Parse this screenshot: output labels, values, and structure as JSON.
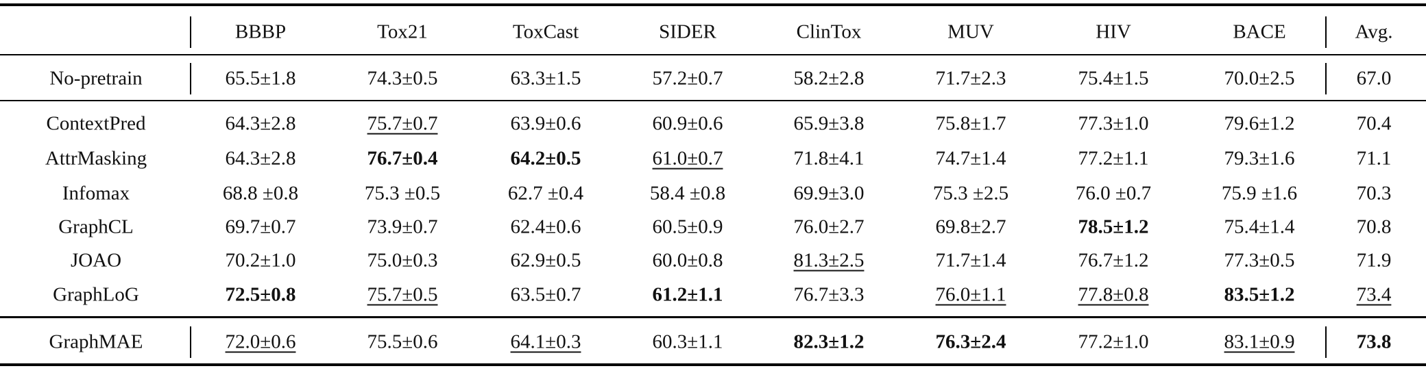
{
  "table": {
    "header": {
      "columns": [
        "BBBP",
        "Tox21",
        "ToxCast",
        "SIDER",
        "ClinTox",
        "MUV",
        "HIV",
        "BACE"
      ],
      "avg": "Avg."
    },
    "sections": [
      {
        "rows": [
          {
            "method": "No-pretrain",
            "cells": [
              "65.5±1.8",
              "74.3±0.5",
              "63.3±1.5",
              "57.2±0.7",
              "58.2±2.8",
              "71.7±2.3",
              "75.4±1.5",
              "70.0±2.5"
            ],
            "avg": "67.0"
          }
        ]
      },
      {
        "rows": [
          {
            "method": "ContextPred",
            "cells": [
              "64.3±2.8",
              {
                "text": "75.7±0.7",
                "style": "underline"
              },
              "63.9±0.6",
              "60.9±0.6",
              "65.9±3.8",
              "75.8±1.7",
              "77.3±1.0",
              "79.6±1.2"
            ],
            "avg": "70.4"
          },
          {
            "method": "AttrMasking",
            "cells": [
              "64.3±2.8",
              {
                "text": "76.7±0.4",
                "style": "bold"
              },
              {
                "text": "64.2±0.5",
                "style": "bold"
              },
              {
                "text": "61.0±0.7",
                "style": "underline"
              },
              "71.8±4.1",
              "74.7±1.4",
              "77.2±1.1",
              "79.3±1.6"
            ],
            "avg": "71.1"
          },
          {
            "method": "Infomax",
            "cells": [
              "68.8 ±0.8",
              "75.3 ±0.5",
              "62.7 ±0.4",
              "58.4 ±0.8",
              "69.9±3.0",
              "75.3 ±2.5",
              "76.0 ±0.7",
              "75.9 ±1.6"
            ],
            "avg": "70.3"
          },
          {
            "method": "GraphCL",
            "cells": [
              "69.7±0.7",
              "73.9±0.7",
              "62.4±0.6",
              "60.5±0.9",
              "76.0±2.7",
              "69.8±2.7",
              {
                "text": "78.5±1.2",
                "style": "bold"
              },
              "75.4±1.4"
            ],
            "avg": "70.8"
          },
          {
            "method": "JOAO",
            "cells": [
              "70.2±1.0",
              "75.0±0.3",
              "62.9±0.5",
              "60.0±0.8",
              {
                "text": "81.3±2.5",
                "style": "underline"
              },
              "71.7±1.4",
              "76.7±1.2",
              "77.3±0.5"
            ],
            "avg": "71.9"
          },
          {
            "method": "GraphLoG",
            "cells": [
              {
                "text": "72.5±0.8",
                "style": "bold"
              },
              {
                "text": "75.7±0.5",
                "style": "underline"
              },
              "63.5±0.7",
              {
                "text": "61.2±1.1",
                "style": "bold"
              },
              "76.7±3.3",
              {
                "text": "76.0±1.1",
                "style": "underline"
              },
              {
                "text": "77.8±0.8",
                "style": "underline"
              },
              {
                "text": "83.5±1.2",
                "style": "bold"
              }
            ],
            "avg": {
              "text": "73.4",
              "style": "underline"
            }
          }
        ]
      },
      {
        "rows": [
          {
            "method": "GraphMAE",
            "cells": [
              {
                "text": "72.0±0.6",
                "style": "underline"
              },
              "75.5±0.6",
              {
                "text": "64.1±0.3",
                "style": "underline"
              },
              "60.3±1.1",
              {
                "text": "82.3±1.2",
                "style": "bold"
              },
              {
                "text": "76.3±2.4",
                "style": "bold"
              },
              "77.2±1.0",
              {
                "text": "83.1±0.9",
                "style": "underline"
              }
            ],
            "avg": {
              "text": "73.8",
              "style": "bold"
            }
          }
        ]
      }
    ]
  }
}
